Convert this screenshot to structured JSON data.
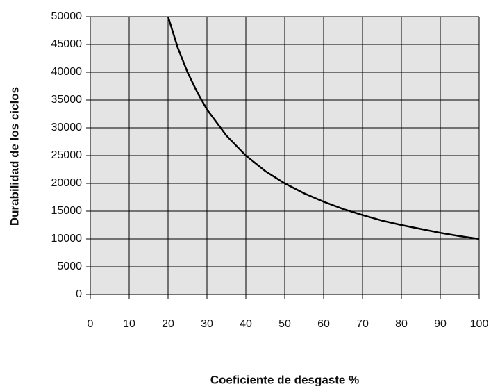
{
  "chart_data": {
    "type": "line",
    "x_label": "Coeficiente de desgaste %",
    "y_label": "Durabilidad de los ciclos",
    "x": [
      20,
      22.5,
      25,
      27.5,
      30,
      35,
      40,
      45,
      50,
      55,
      60,
      65,
      70,
      75,
      80,
      85,
      90,
      95,
      100
    ],
    "series": [
      {
        "color": "#000000",
        "values": [
          50000,
          44400,
          40000,
          36400,
          33300,
          28600,
          25000,
          22200,
          20000,
          18200,
          16700,
          15400,
          14300,
          13300,
          12500,
          11800,
          11100,
          10500,
          10000
        ]
      }
    ],
    "xlim": [
      0,
      100
    ],
    "xticks": [
      0,
      10,
      20,
      30,
      40,
      50,
      60,
      70,
      80,
      90,
      100
    ],
    "ylim": [
      0,
      50000
    ],
    "yticks": [
      0,
      5000,
      10000,
      15000,
      20000,
      25000,
      30000,
      35000,
      40000,
      45000,
      50000
    ],
    "grid": true
  }
}
